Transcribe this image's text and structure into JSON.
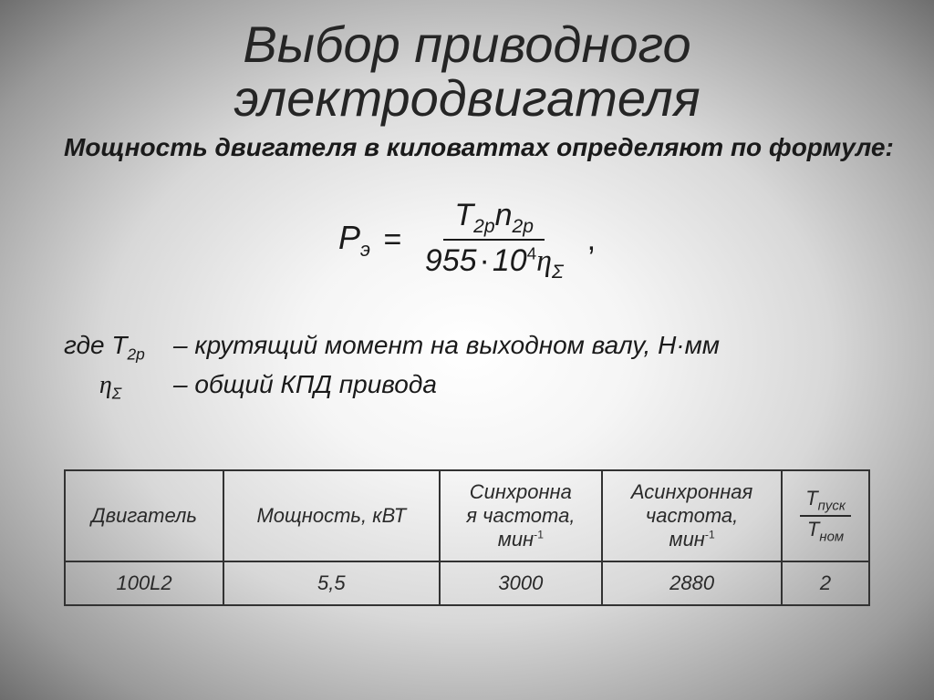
{
  "title_line1": "Выбор приводного",
  "title_line2": "электродвигателя",
  "subtitle": "Мощность двигателя в киловаттах определяют по формуле:",
  "formula": {
    "lhs_var": "P",
    "lhs_sub": "э",
    "eq": "=",
    "num_T": "T",
    "num_T_sub": "2р",
    "num_n": "n",
    "num_n_sub": "2р",
    "den_const": "955",
    "den_ten": "10",
    "den_exp": "4",
    "den_eta": "η",
    "den_eta_sub": "Σ",
    "trailing": ","
  },
  "desc": {
    "line1_pre": "где ",
    "line1_sym": "T",
    "line1_sub": "2р",
    "line1_text": " – крутящий момент на выходном валу, Н·мм",
    "line2_sym": "η",
    "line2_sub": "Σ",
    "line2_text": "  – общий КПД привода"
  },
  "table": {
    "headers": {
      "c1": "Двигатель",
      "c2": "Мощность, кВТ",
      "c3_l1": "Синхронна",
      "c3_l2": "я частота,",
      "c3_unit_base": "мин",
      "c3_unit_exp": "-1",
      "c4_l1": "Асинхронная",
      "c4_l2": "частота,",
      "c4_unit_base": "мин",
      "c4_unit_exp": "-1",
      "c5_T": "T",
      "c5_top_sub": "пуск",
      "c5_bot_sub": "ном"
    },
    "row": {
      "engine": "100L2",
      "power": "5,5",
      "sync": "3000",
      "async": "2880",
      "ratio": "2"
    },
    "col_widths_pct": [
      16,
      16,
      22,
      24,
      14
    ],
    "border_color": "#323232",
    "font_size": 22
  },
  "colors": {
    "text": "#1a1a1a",
    "bg_center": "#ffffff",
    "bg_edge": "#6e6e6e"
  },
  "fonts": {
    "title_size": 56,
    "subtitle_size": 28,
    "formula_size": 34,
    "desc_size": 28
  }
}
